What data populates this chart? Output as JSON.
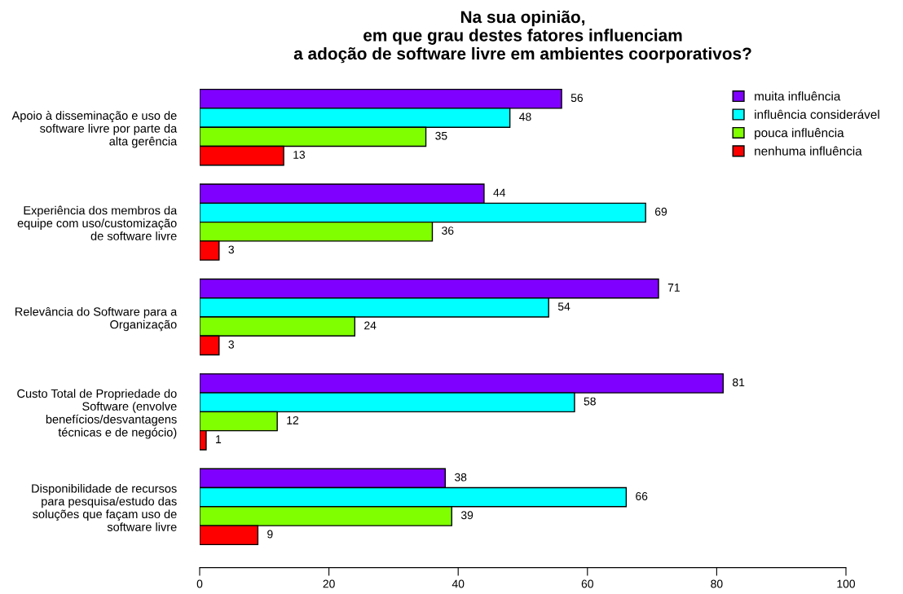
{
  "chart_data": {
    "type": "bar",
    "orientation": "horizontal",
    "title": "Na sua opinião,\nem que grau destes fatores influenciam\na adoção de software livre em ambientes coorporativos?",
    "categories": [
      "Apoio à disseminação e uso de\nsoftware livre por parte da\nalta gerência",
      "Experiência dos membros da\nequipe com uso/customização\nde software livre",
      "Relevância do Software para a\nOrganização",
      "Custo Total de Propriedade do\nSoftware (envolve\nbenefícios/desvantagens\ntécnicas e de negócio)",
      "Disponibilidade de recursos\npara pesquisa/estudo das\nsoluções que façam uso de\nsoftware livre"
    ],
    "series": [
      {
        "name": "muita influência",
        "color": "#8000ff",
        "values": [
          56,
          44,
          71,
          81,
          38
        ]
      },
      {
        "name": "influência considerável",
        "color": "#00ffff",
        "values": [
          48,
          69,
          54,
          58,
          66
        ]
      },
      {
        "name": "pouca influência",
        "color": "#80ff00",
        "values": [
          35,
          36,
          24,
          12,
          39
        ]
      },
      {
        "name": "nenhuma influência",
        "color": "#ff0000",
        "values": [
          13,
          3,
          3,
          1,
          9
        ]
      }
    ],
    "xlim": [
      0,
      100
    ],
    "xticks": [
      0,
      20,
      40,
      60,
      80,
      100
    ],
    "data_labels": true,
    "legend": "top right",
    "grid": false
  }
}
